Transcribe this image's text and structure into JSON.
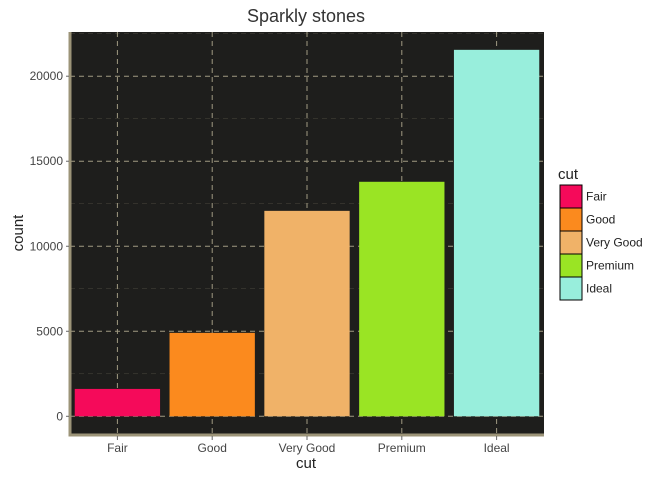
{
  "chart_data": {
    "type": "bar",
    "title": "Sparkly stones",
    "xlabel": "cut",
    "ylabel": "count",
    "categories": [
      "Fair",
      "Good",
      "Very Good",
      "Premium",
      "Ideal"
    ],
    "values": [
      1610,
      4906,
      12082,
      13791,
      21551
    ],
    "colors": [
      "#f50a5a",
      "#fb8a1e",
      "#f0b268",
      "#9ae424",
      "#98eedc"
    ],
    "ylim": [
      -1100,
      22600
    ],
    "yticks": [
      0,
      5000,
      10000,
      15000,
      20000
    ],
    "ytick_labels": [
      "0",
      "5000",
      "10000",
      "15000",
      "20000"
    ],
    "grid": true,
    "legend": {
      "title": "cut",
      "position": "right",
      "entries": [
        "Fair",
        "Good",
        "Very Good",
        "Premium",
        "Ideal"
      ]
    },
    "panel_background": "#1e1e1c",
    "grid_color": "#a09a82",
    "axis_line_color": "#9c9478"
  }
}
